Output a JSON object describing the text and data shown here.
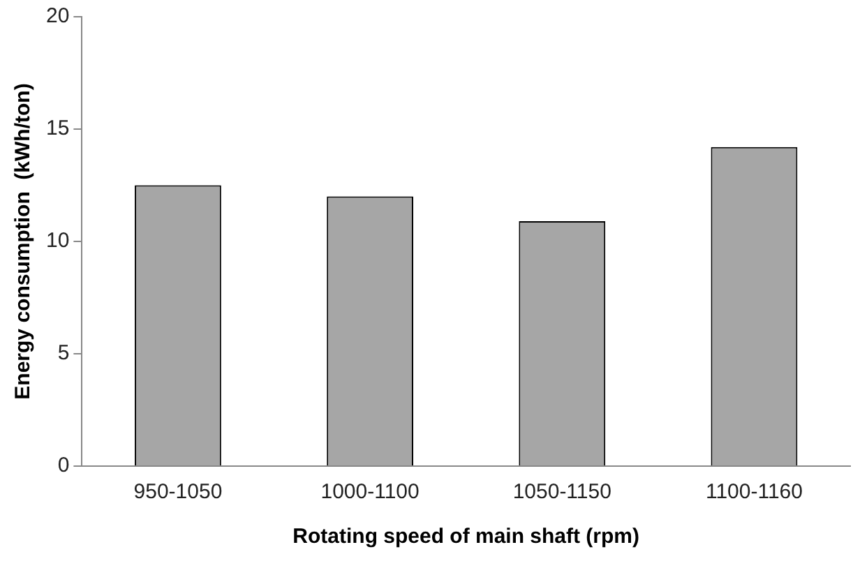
{
  "chart_data": {
    "type": "bar",
    "xlabel": "Rotating speed of main shaft (rpm)",
    "ylabel": "Energy consumption  (kWh/ton)",
    "categories": [
      "950-1050",
      "1000-1100",
      "1050-1150",
      "1100-1160"
    ],
    "values": [
      12.5,
      12.0,
      10.9,
      14.2
    ],
    "color": "#a6a6a6",
    "ylim": [
      0,
      20
    ],
    "yticks": [
      0,
      5,
      10,
      15,
      20
    ],
    "grid": false,
    "legend": false
  }
}
